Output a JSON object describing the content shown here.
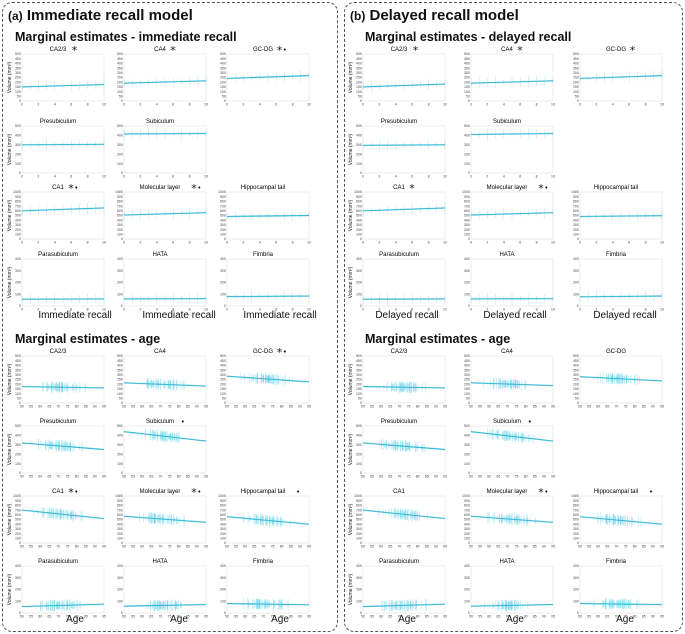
{
  "panels": [
    {
      "label": "(a)",
      "title": "Immediate recall model",
      "sections": [
        {
          "heading": "Marginal estimates - immediate recall",
          "xlabel": "Immediate recall",
          "kind": "recall"
        },
        {
          "heading": "Marginal estimates - age",
          "xlabel": "Age",
          "kind": "age"
        }
      ]
    },
    {
      "label": "(b)",
      "title": "Delayed recall model",
      "sections": [
        {
          "heading": "Marginal estimates - delayed recall",
          "xlabel": "Delayed recall",
          "kind": "recall"
        },
        {
          "heading": "Marginal estimates - age",
          "xlabel": "Age",
          "kind": "age"
        }
      ]
    }
  ],
  "ylabel": "Volume (mm³)",
  "line_color": "#2eb5d6",
  "band_color": "#8fd9ea",
  "point_color": "#63d3e8",
  "recall_ticks": [
    "0",
    "2",
    "4",
    "6",
    "8",
    "10"
  ],
  "age_ticks": [
    "50",
    "55",
    "60",
    "65",
    "70",
    "75",
    "80",
    "85",
    "90",
    "95"
  ],
  "chart_data": [
    {
      "type": "line",
      "panel": "a",
      "section": "immediate recall",
      "subfield": "CA2/3",
      "markers": [
        "*"
      ],
      "x": [
        0,
        10
      ],
      "y": [
        150,
        175
      ],
      "ylim": [
        0,
        500
      ],
      "yticks": [
        0,
        50,
        100,
        150,
        200,
        250,
        300,
        350,
        400,
        450,
        500
      ]
    },
    {
      "type": "line",
      "panel": "a",
      "section": "immediate recall",
      "subfield": "CA4",
      "markers": [
        "*"
      ],
      "x": [
        0,
        10
      ],
      "y": [
        190,
        215
      ],
      "ylim": [
        0,
        500
      ],
      "yticks": [
        0,
        50,
        100,
        150,
        200,
        250,
        300,
        350,
        400,
        450,
        500
      ]
    },
    {
      "type": "line",
      "panel": "a",
      "section": "immediate recall",
      "subfield": "GC-DG",
      "markers": [
        "*",
        "•"
      ],
      "x": [
        0,
        10
      ],
      "y": [
        240,
        270
      ],
      "ylim": [
        0,
        500
      ],
      "yticks": [
        0,
        50,
        100,
        150,
        200,
        250,
        300,
        350,
        400,
        450,
        500
      ]
    },
    {
      "type": "line",
      "panel": "a",
      "section": "immediate recall",
      "subfield": "Presubiculum",
      "markers": [],
      "x": [
        0,
        10
      ],
      "y": [
        300,
        305
      ],
      "ylim": [
        0,
        500
      ],
      "yticks": [
        0,
        100,
        200,
        300,
        400,
        500
      ]
    },
    {
      "type": "line",
      "panel": "a",
      "section": "immediate recall",
      "subfield": "Subiculum",
      "markers": [],
      "x": [
        0,
        10
      ],
      "y": [
        415,
        420
      ],
      "ylim": [
        0,
        500
      ],
      "yticks": [
        0,
        100,
        200,
        300,
        400,
        500
      ]
    },
    {
      "type": "line",
      "panel": "a",
      "section": "immediate recall",
      "subfield": "CA1",
      "markers": [
        "*",
        "•"
      ],
      "x": [
        0,
        10
      ],
      "y": [
        600,
        660
      ],
      "ylim": [
        0,
        1000
      ],
      "yticks": [
        0,
        100,
        200,
        300,
        400,
        500,
        600,
        700,
        800,
        900,
        1000
      ]
    },
    {
      "type": "line",
      "panel": "a",
      "section": "immediate recall",
      "subfield": "Molecular layer",
      "markers": [
        "*",
        "•"
      ],
      "x": [
        0,
        10
      ],
      "y": [
        510,
        560
      ],
      "ylim": [
        0,
        1000
      ],
      "yticks": [
        0,
        100,
        200,
        300,
        400,
        500,
        600,
        700,
        800,
        900,
        1000
      ]
    },
    {
      "type": "line",
      "panel": "a",
      "section": "immediate recall",
      "subfield": "Hippocampal tail",
      "markers": [],
      "x": [
        0,
        10
      ],
      "y": [
        480,
        500
      ],
      "ylim": [
        0,
        1000
      ],
      "yticks": [
        0,
        100,
        200,
        300,
        400,
        500,
        600,
        700,
        800,
        900,
        1000
      ]
    },
    {
      "type": "line",
      "panel": "a",
      "section": "immediate recall",
      "subfield": "Parasubiculum",
      "markers": [],
      "x": [
        0,
        10
      ],
      "y": [
        58,
        60
      ],
      "ylim": [
        0,
        400
      ],
      "yticks": [
        0,
        100,
        200,
        300,
        400
      ]
    },
    {
      "type": "line",
      "panel": "a",
      "section": "immediate recall",
      "subfield": "HATA",
      "markers": [],
      "x": [
        0,
        10
      ],
      "y": [
        60,
        62
      ],
      "ylim": [
        0,
        400
      ],
      "yticks": [
        0,
        100,
        200,
        300,
        400
      ]
    },
    {
      "type": "line",
      "panel": "a",
      "section": "immediate recall",
      "subfield": "Fimbria",
      "markers": [],
      "x": [
        0,
        10
      ],
      "y": [
        80,
        85
      ],
      "ylim": [
        0,
        400
      ],
      "yticks": [
        0,
        100,
        200,
        300,
        400
      ]
    },
    {
      "type": "line",
      "panel": "a",
      "section": "age",
      "subfield": "CA2/3",
      "markers": [],
      "x": [
        50,
        95
      ],
      "y": [
        175,
        160
      ],
      "ylim": [
        0,
        500
      ],
      "yticks": [
        0,
        50,
        100,
        150,
        200,
        250,
        300,
        350,
        400,
        450,
        500
      ]
    },
    {
      "type": "line",
      "panel": "a",
      "section": "age",
      "subfield": "CA4",
      "markers": [],
      "x": [
        50,
        95
      ],
      "y": [
        215,
        180
      ],
      "ylim": [
        0,
        500
      ],
      "yticks": [
        0,
        50,
        100,
        150,
        200,
        250,
        300,
        350,
        400,
        450,
        500
      ]
    },
    {
      "type": "line",
      "panel": "a",
      "section": "age",
      "subfield": "GC-DG",
      "markers": [
        "*",
        "•"
      ],
      "x": [
        50,
        95
      ],
      "y": [
        285,
        225
      ],
      "ylim": [
        0,
        500
      ],
      "yticks": [
        0,
        50,
        100,
        150,
        200,
        250,
        300,
        350,
        400,
        450,
        500
      ]
    },
    {
      "type": "line",
      "panel": "a",
      "section": "age",
      "subfield": "Presubiculum",
      "markers": [],
      "x": [
        50,
        95
      ],
      "y": [
        320,
        250
      ],
      "ylim": [
        0,
        500
      ],
      "yticks": [
        0,
        100,
        200,
        300,
        400,
        500
      ]
    },
    {
      "type": "line",
      "panel": "a",
      "section": "age",
      "subfield": "Subiculum",
      "markers": [
        "•"
      ],
      "x": [
        50,
        95
      ],
      "y": [
        440,
        340
      ],
      "ylim": [
        0,
        500
      ],
      "yticks": [
        0,
        100,
        200,
        300,
        400,
        500
      ]
    },
    {
      "type": "line",
      "panel": "a",
      "section": "age",
      "subfield": "CA1",
      "markers": [
        "*",
        "•"
      ],
      "x": [
        50,
        95
      ],
      "y": [
        700,
        520
      ],
      "ylim": [
        0,
        1000
      ],
      "yticks": [
        0,
        100,
        200,
        300,
        400,
        500,
        600,
        700,
        800,
        900,
        1000
      ]
    },
    {
      "type": "line",
      "panel": "a",
      "section": "age",
      "subfield": "Molecular layer",
      "markers": [
        "*",
        "•"
      ],
      "x": [
        50,
        95
      ],
      "y": [
        570,
        440
      ],
      "ylim": [
        0,
        1000
      ],
      "yticks": [
        0,
        100,
        200,
        300,
        400,
        500,
        600,
        700,
        800,
        900,
        1000
      ]
    },
    {
      "type": "line",
      "panel": "a",
      "section": "age",
      "subfield": "Hippocampal tail",
      "markers": [
        "•"
      ],
      "x": [
        50,
        95
      ],
      "y": [
        560,
        400
      ],
      "ylim": [
        0,
        1000
      ],
      "yticks": [
        0,
        100,
        200,
        300,
        400,
        500,
        600,
        700,
        800,
        900,
        1000
      ]
    },
    {
      "type": "line",
      "panel": "a",
      "section": "age",
      "subfield": "Parasubiculum",
      "markers": [],
      "x": [
        50,
        95
      ],
      "y": [
        55,
        75
      ],
      "ylim": [
        0,
        400
      ],
      "yticks": [
        0,
        100,
        200,
        300,
        400
      ]
    },
    {
      "type": "line",
      "panel": "a",
      "section": "age",
      "subfield": "HATA",
      "markers": [],
      "x": [
        50,
        95
      ],
      "y": [
        58,
        72
      ],
      "ylim": [
        0,
        400
      ],
      "yticks": [
        0,
        100,
        200,
        300,
        400
      ]
    },
    {
      "type": "line",
      "panel": "a",
      "section": "age",
      "subfield": "Fimbria",
      "markers": [],
      "x": [
        50,
        95
      ],
      "y": [
        80,
        70
      ],
      "ylim": [
        0,
        400
      ],
      "yticks": [
        0,
        100,
        200,
        300,
        400
      ]
    },
    {
      "type": "line",
      "panel": "b",
      "section": "delayed recall",
      "subfield": "CA2/3",
      "markers": [
        "*"
      ],
      "x": [
        0,
        10
      ],
      "y": [
        150,
        180
      ],
      "ylim": [
        0,
        500
      ],
      "yticks": [
        0,
        50,
        100,
        150,
        200,
        250,
        300,
        350,
        400,
        450,
        500
      ]
    },
    {
      "type": "line",
      "panel": "b",
      "section": "delayed recall",
      "subfield": "CA4",
      "markers": [
        "*"
      ],
      "x": [
        0,
        10
      ],
      "y": [
        190,
        215
      ],
      "ylim": [
        0,
        500
      ],
      "yticks": [
        0,
        50,
        100,
        150,
        200,
        250,
        300,
        350,
        400,
        450,
        500
      ]
    },
    {
      "type": "line",
      "panel": "b",
      "section": "delayed recall",
      "subfield": "GC-DG",
      "markers": [
        "*"
      ],
      "x": [
        0,
        10
      ],
      "y": [
        240,
        270
      ],
      "ylim": [
        0,
        500
      ],
      "yticks": [
        0,
        50,
        100,
        150,
        200,
        250,
        300,
        350,
        400,
        450,
        500
      ]
    },
    {
      "type": "line",
      "panel": "b",
      "section": "delayed recall",
      "subfield": "Presubiculum",
      "markers": [],
      "x": [
        0,
        10
      ],
      "y": [
        295,
        300
      ],
      "ylim": [
        0,
        500
      ],
      "yticks": [
        0,
        100,
        200,
        300,
        400,
        500
      ]
    },
    {
      "type": "line",
      "panel": "b",
      "section": "delayed recall",
      "subfield": "Subiculum",
      "markers": [],
      "x": [
        0,
        10
      ],
      "y": [
        410,
        420
      ],
      "ylim": [
        0,
        500
      ],
      "yticks": [
        0,
        100,
        200,
        300,
        400,
        500
      ]
    },
    {
      "type": "line",
      "panel": "b",
      "section": "delayed recall",
      "subfield": "CA1",
      "markers": [
        "*"
      ],
      "x": [
        0,
        10
      ],
      "y": [
        600,
        660
      ],
      "ylim": [
        0,
        1000
      ],
      "yticks": [
        0,
        100,
        200,
        300,
        400,
        500,
        600,
        700,
        800,
        900,
        1000
      ]
    },
    {
      "type": "line",
      "panel": "b",
      "section": "delayed recall",
      "subfield": "Molecular layer",
      "markers": [
        "*",
        "•"
      ],
      "x": [
        0,
        10
      ],
      "y": [
        510,
        560
      ],
      "ylim": [
        0,
        1000
      ],
      "yticks": [
        0,
        100,
        200,
        300,
        400,
        500,
        600,
        700,
        800,
        900,
        1000
      ]
    },
    {
      "type": "line",
      "panel": "b",
      "section": "delayed recall",
      "subfield": "Hippocampal tail",
      "markers": [],
      "x": [
        0,
        10
      ],
      "y": [
        480,
        495
      ],
      "ylim": [
        0,
        1000
      ],
      "yticks": [
        0,
        100,
        200,
        300,
        400,
        500,
        600,
        700,
        800,
        900,
        1000
      ]
    },
    {
      "type": "line",
      "panel": "b",
      "section": "delayed recall",
      "subfield": "Parasubiculum",
      "markers": [],
      "x": [
        0,
        10
      ],
      "y": [
        58,
        60
      ],
      "ylim": [
        0,
        400
      ],
      "yticks": [
        0,
        100,
        200,
        300,
        400
      ]
    },
    {
      "type": "line",
      "panel": "b",
      "section": "delayed recall",
      "subfield": "HATA",
      "markers": [],
      "x": [
        0,
        10
      ],
      "y": [
        60,
        62
      ],
      "ylim": [
        0,
        400
      ],
      "yticks": [
        0,
        100,
        200,
        300,
        400
      ]
    },
    {
      "type": "line",
      "panel": "b",
      "section": "delayed recall",
      "subfield": "Fimbria",
      "markers": [],
      "x": [
        0,
        10
      ],
      "y": [
        78,
        85
      ],
      "ylim": [
        0,
        400
      ],
      "yticks": [
        0,
        100,
        200,
        300,
        400
      ]
    },
    {
      "type": "line",
      "panel": "b",
      "section": "age",
      "subfield": "CA2/3",
      "markers": [],
      "x": [
        50,
        95
      ],
      "y": [
        175,
        160
      ],
      "ylim": [
        0,
        500
      ],
      "yticks": [
        0,
        50,
        100,
        150,
        200,
        250,
        300,
        350,
        400,
        450,
        500
      ]
    },
    {
      "type": "line",
      "panel": "b",
      "section": "age",
      "subfield": "CA4",
      "markers": [],
      "x": [
        50,
        95
      ],
      "y": [
        215,
        185
      ],
      "ylim": [
        0,
        500
      ],
      "yticks": [
        0,
        50,
        100,
        150,
        200,
        250,
        300,
        350,
        400,
        450,
        500
      ]
    },
    {
      "type": "line",
      "panel": "b",
      "section": "age",
      "subfield": "GC-DG",
      "markers": [],
      "x": [
        50,
        95
      ],
      "y": [
        280,
        235
      ],
      "ylim": [
        0,
        500
      ],
      "yticks": [
        0,
        50,
        100,
        150,
        200,
        250,
        300,
        350,
        400,
        450,
        500
      ]
    },
    {
      "type": "line",
      "panel": "b",
      "section": "age",
      "subfield": "Presubiculum",
      "markers": [],
      "x": [
        50,
        95
      ],
      "y": [
        320,
        250
      ],
      "ylim": [
        0,
        500
      ],
      "yticks": [
        0,
        100,
        200,
        300,
        400,
        500
      ]
    },
    {
      "type": "line",
      "panel": "b",
      "section": "age",
      "subfield": "Subiculum",
      "markers": [
        "•"
      ],
      "x": [
        50,
        95
      ],
      "y": [
        440,
        340
      ],
      "ylim": [
        0,
        500
      ],
      "yticks": [
        0,
        100,
        200,
        300,
        400,
        500
      ]
    },
    {
      "type": "line",
      "panel": "b",
      "section": "age",
      "subfield": "CA1",
      "markers": [],
      "x": [
        50,
        95
      ],
      "y": [
        700,
        520
      ],
      "ylim": [
        0,
        1000
      ],
      "yticks": [
        0,
        100,
        200,
        300,
        400,
        500,
        600,
        700,
        800,
        900,
        1000
      ]
    },
    {
      "type": "line",
      "panel": "b",
      "section": "age",
      "subfield": "Molecular layer",
      "markers": [
        "*",
        "•"
      ],
      "x": [
        50,
        95
      ],
      "y": [
        570,
        440
      ],
      "ylim": [
        0,
        1000
      ],
      "yticks": [
        0,
        100,
        200,
        300,
        400,
        500,
        600,
        700,
        800,
        900,
        1000
      ]
    },
    {
      "type": "line",
      "panel": "b",
      "section": "age",
      "subfield": "Hippocampal tail",
      "markers": [
        "•"
      ],
      "x": [
        50,
        95
      ],
      "y": [
        560,
        400
      ],
      "ylim": [
        0,
        1000
      ],
      "yticks": [
        0,
        100,
        200,
        300,
        400,
        500,
        600,
        700,
        800,
        900,
        1000
      ]
    },
    {
      "type": "line",
      "panel": "b",
      "section": "age",
      "subfield": "Parasubiculum",
      "markers": [],
      "x": [
        50,
        95
      ],
      "y": [
        55,
        75
      ],
      "ylim": [
        0,
        400
      ],
      "yticks": [
        0,
        100,
        200,
        300,
        400
      ]
    },
    {
      "type": "line",
      "panel": "b",
      "section": "age",
      "subfield": "HATA",
      "markers": [],
      "x": [
        50,
        95
      ],
      "y": [
        58,
        72
      ],
      "ylim": [
        0,
        400
      ],
      "yticks": [
        0,
        100,
        200,
        300,
        400
      ]
    },
    {
      "type": "line",
      "panel": "b",
      "section": "age",
      "subfield": "Fimbria",
      "markers": [],
      "x": [
        50,
        95
      ],
      "y": [
        80,
        72
      ],
      "ylim": [
        0,
        400
      ],
      "yticks": [
        0,
        100,
        200,
        300,
        400
      ]
    }
  ]
}
